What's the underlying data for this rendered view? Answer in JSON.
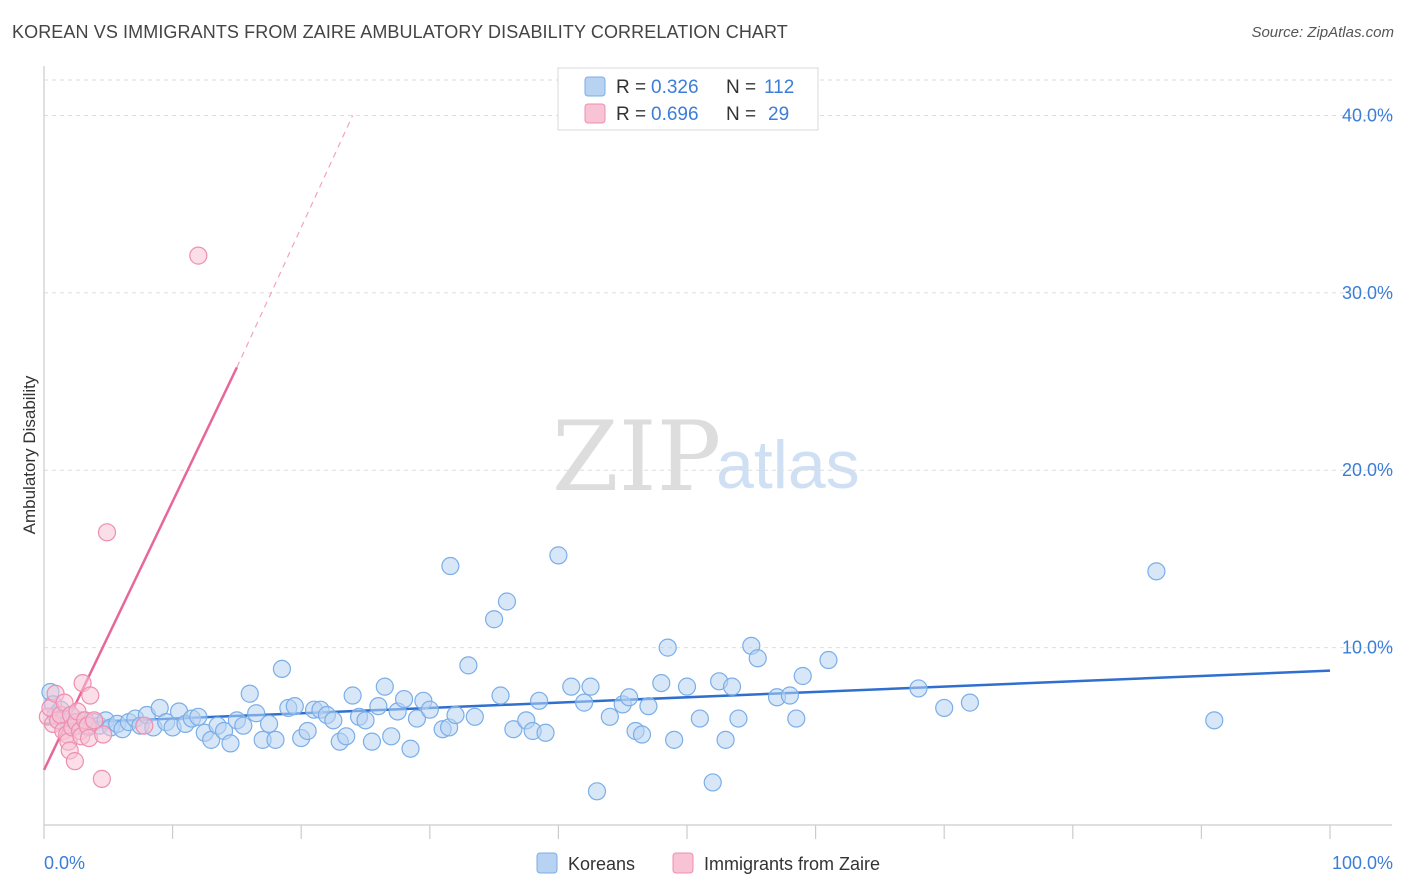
{
  "header": {
    "title": "KOREAN VS IMMIGRANTS FROM ZAIRE AMBULATORY DISABILITY CORRELATION CHART",
    "source": "Source: ZipAtlas.com"
  },
  "watermark": {
    "zip": "ZIP",
    "atlas": "atlas"
  },
  "chart_data": {
    "type": "scatter",
    "title": "KOREAN VS IMMIGRANTS FROM ZAIRE AMBULATORY DISABILITY CORRELATION CHART",
    "xlabel": "",
    "ylabel": "Ambulatory Disability",
    "xlim": [
      0,
      100
    ],
    "ylim": [
      0,
      42
    ],
    "x_tick_labels": [
      "0.0%",
      "100.0%"
    ],
    "y_ticks": [
      10,
      20,
      30,
      40
    ],
    "y_tick_labels": [
      "10.0%",
      "20.0%",
      "30.0%",
      "40.0%"
    ],
    "grid": true,
    "legend_position": "top-center",
    "legend": [
      {
        "r_label": "R =",
        "r_value": "0.326",
        "n_label": "N =",
        "n_value": "112"
      },
      {
        "r_label": "R =",
        "r_value": "0.696",
        "n_label": "N =",
        "n_value": "29"
      }
    ],
    "series": [
      {
        "name": "Koreans",
        "color": "#7aaee8",
        "fill": "#b8d3f2",
        "trend": {
          "x": [
            0,
            100
          ],
          "y": [
            5.7,
            8.7
          ],
          "dashed_extension": false,
          "color": "#2f6fd0"
        },
        "points": [
          [
            0.5,
            7.5
          ],
          [
            0.7,
            6.8
          ],
          [
            0.9,
            6.2
          ],
          [
            1.1,
            5.9
          ],
          [
            1.3,
            6.5
          ],
          [
            1.6,
            6.0
          ],
          [
            1.9,
            5.8
          ],
          [
            2.2,
            6.1
          ],
          [
            2.6,
            5.6
          ],
          [
            3.0,
            5.9
          ],
          [
            3.4,
            5.5
          ],
          [
            3.9,
            5.8
          ],
          [
            4.3,
            5.6
          ],
          [
            4.8,
            5.9
          ],
          [
            5.2,
            5.5
          ],
          [
            5.7,
            5.7
          ],
          [
            6.1,
            5.4
          ],
          [
            6.6,
            5.8
          ],
          [
            7.1,
            6.0
          ],
          [
            7.5,
            5.6
          ],
          [
            8.0,
            6.2
          ],
          [
            8.5,
            5.5
          ],
          [
            9.0,
            6.6
          ],
          [
            9.5,
            5.8
          ],
          [
            10.0,
            5.5
          ],
          [
            10.5,
            6.4
          ],
          [
            11.0,
            5.7
          ],
          [
            11.5,
            6.0
          ],
          [
            12.0,
            6.1
          ],
          [
            12.5,
            5.2
          ],
          [
            13.0,
            4.8
          ],
          [
            13.5,
            5.6
          ],
          [
            14.0,
            5.3
          ],
          [
            14.5,
            4.6
          ],
          [
            15.0,
            5.9
          ],
          [
            15.5,
            5.6
          ],
          [
            16.0,
            7.4
          ],
          [
            16.5,
            6.3
          ],
          [
            17.0,
            4.8
          ],
          [
            17.5,
            5.7
          ],
          [
            18.0,
            4.8
          ],
          [
            18.5,
            8.8
          ],
          [
            19.0,
            6.6
          ],
          [
            19.5,
            6.7
          ],
          [
            20.0,
            4.9
          ],
          [
            20.5,
            5.3
          ],
          [
            21.0,
            6.5
          ],
          [
            21.5,
            6.5
          ],
          [
            22.0,
            6.2
          ],
          [
            22.5,
            5.9
          ],
          [
            23.0,
            4.7
          ],
          [
            23.5,
            5.0
          ],
          [
            24.0,
            7.3
          ],
          [
            24.5,
            6.1
          ],
          [
            25.0,
            5.9
          ],
          [
            25.5,
            4.7
          ],
          [
            26.0,
            6.7
          ],
          [
            26.5,
            7.8
          ],
          [
            27.0,
            5.0
          ],
          [
            27.5,
            6.4
          ],
          [
            28.0,
            7.1
          ],
          [
            28.5,
            4.3
          ],
          [
            29.0,
            6.0
          ],
          [
            29.5,
            7.0
          ],
          [
            30.0,
            6.5
          ],
          [
            31.0,
            5.4
          ],
          [
            31.5,
            5.5
          ],
          [
            32.0,
            6.2
          ],
          [
            33.0,
            9.0
          ],
          [
            33.5,
            6.1
          ],
          [
            31.6,
            14.6
          ],
          [
            35.0,
            11.6
          ],
          [
            36.0,
            12.6
          ],
          [
            36.5,
            5.4
          ],
          [
            35.5,
            7.3
          ],
          [
            37.5,
            5.9
          ],
          [
            38.0,
            5.3
          ],
          [
            38.5,
            7.0
          ],
          [
            39.0,
            5.2
          ],
          [
            40.0,
            15.2
          ],
          [
            41.0,
            7.8
          ],
          [
            42.0,
            6.9
          ],
          [
            42.5,
            7.8
          ],
          [
            43.0,
            1.9
          ],
          [
            44.0,
            6.1
          ],
          [
            45.0,
            6.8
          ],
          [
            45.5,
            7.2
          ],
          [
            46.0,
            5.3
          ],
          [
            46.5,
            5.1
          ],
          [
            47.0,
            6.7
          ],
          [
            48.0,
            8.0
          ],
          [
            48.5,
            10.0
          ],
          [
            49.0,
            4.8
          ],
          [
            50.0,
            7.8
          ],
          [
            51.0,
            6.0
          ],
          [
            52.0,
            2.4
          ],
          [
            52.5,
            8.1
          ],
          [
            53.0,
            4.8
          ],
          [
            53.5,
            7.8
          ],
          [
            54.0,
            6.0
          ],
          [
            55.0,
            10.1
          ],
          [
            55.5,
            9.4
          ],
          [
            57.0,
            7.2
          ],
          [
            58.0,
            7.3
          ],
          [
            58.5,
            6.0
          ],
          [
            59.0,
            8.4
          ],
          [
            61.0,
            9.3
          ],
          [
            68.0,
            7.7
          ],
          [
            70.0,
            6.6
          ],
          [
            72.0,
            6.9
          ],
          [
            86.5,
            14.3
          ],
          [
            91.0,
            5.9
          ]
        ]
      },
      {
        "name": "Immigrants from Zaire",
        "color": "#ee8fb0",
        "fill": "#f8c3d5",
        "trend": {
          "x": [
            0,
            15
          ],
          "y": [
            3.1,
            25.8
          ],
          "dashed_extension": true,
          "dash_to": [
            24,
            40
          ],
          "color": "#e8679a"
        },
        "points": [
          [
            0.3,
            6.1
          ],
          [
            0.5,
            6.6
          ],
          [
            0.7,
            5.7
          ],
          [
            0.9,
            7.4
          ],
          [
            1.1,
            5.9
          ],
          [
            1.3,
            6.2
          ],
          [
            1.5,
            5.3
          ],
          [
            1.6,
            6.9
          ],
          [
            1.8,
            5.1
          ],
          [
            1.9,
            4.7
          ],
          [
            2.0,
            4.2
          ],
          [
            2.1,
            6.2
          ],
          [
            2.2,
            5.5
          ],
          [
            2.4,
            3.6
          ],
          [
            2.5,
            5.8
          ],
          [
            2.6,
            6.4
          ],
          [
            2.8,
            5.3
          ],
          [
            2.9,
            5.0
          ],
          [
            3.0,
            8.0
          ],
          [
            3.2,
            5.9
          ],
          [
            3.4,
            5.6
          ],
          [
            3.6,
            7.3
          ],
          [
            3.9,
            5.9
          ],
          [
            3.5,
            4.9
          ],
          [
            4.5,
            2.6
          ],
          [
            4.6,
            5.1
          ],
          [
            4.9,
            16.5
          ],
          [
            7.8,
            5.6
          ],
          [
            12.0,
            32.1
          ]
        ]
      }
    ]
  },
  "bottom_legend": {
    "items": [
      {
        "label": "Koreans",
        "color": "#b8d3f2",
        "stroke": "#7aaee8"
      },
      {
        "label": "Immigrants from Zaire",
        "color": "#f8c3d5",
        "stroke": "#ee8fb0"
      }
    ]
  },
  "colors": {
    "tick_text": "#3b7dd8",
    "grid": "#dddddd",
    "axis": "#cccccc"
  }
}
